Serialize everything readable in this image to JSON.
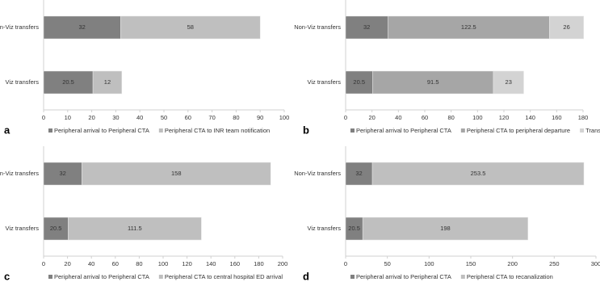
{
  "chart_data": [
    {
      "type": "stacked-bar",
      "panel_label": "a",
      "categories": [
        "Non-Viz transfers",
        "Viz transfers"
      ],
      "series": [
        {
          "name": "Peripheral arrival to Peripheral CTA",
          "color": "#808080",
          "values": [
            32,
            20.5
          ]
        },
        {
          "name": "Peripheral CTA to INR team notification",
          "color": "#bfbfbf",
          "values": [
            58,
            12
          ]
        }
      ],
      "xlim": [
        0,
        100
      ],
      "xticks": [
        0,
        10,
        20,
        30,
        40,
        50,
        60,
        70,
        80,
        90,
        100
      ]
    },
    {
      "type": "stacked-bar",
      "panel_label": "b",
      "categories": [
        "Non-Viz transfers",
        "Viz transfers"
      ],
      "series": [
        {
          "name": "Peripheral arrival to Peripheral CTA",
          "color": "#808080",
          "values": [
            32,
            20.5
          ]
        },
        {
          "name": "Peripheral CTA to peripheral departure",
          "color": "#a6a6a6",
          "values": [
            122.5,
            91.5
          ]
        },
        {
          "name": "Transfer time",
          "color": "#d3d3d3",
          "values": [
            26,
            23
          ]
        }
      ],
      "xlim": [
        0,
        180
      ],
      "xticks": [
        0,
        20,
        40,
        60,
        80,
        100,
        120,
        140,
        160,
        180
      ]
    },
    {
      "type": "stacked-bar",
      "panel_label": "c",
      "categories": [
        "Non-Viz transfers",
        "Viz transfers"
      ],
      "series": [
        {
          "name": "Peripheral arrival to Peripheral CTA",
          "color": "#808080",
          "values": [
            32,
            20.5
          ]
        },
        {
          "name": "Peripheral CTA to central hospital ED arrival",
          "color": "#bfbfbf",
          "values": [
            158,
            111.5
          ]
        }
      ],
      "xlim": [
        0,
        200
      ],
      "xticks": [
        0,
        20,
        40,
        60,
        80,
        100,
        120,
        140,
        160,
        180,
        200
      ]
    },
    {
      "type": "stacked-bar",
      "panel_label": "d",
      "categories": [
        "Non-Viz transfers",
        "Viz transfers"
      ],
      "series": [
        {
          "name": "Peripheral arrival to Peripheral CTA",
          "color": "#808080",
          "values": [
            32,
            20.5
          ]
        },
        {
          "name": "Peripheral CTA to recanalization",
          "color": "#bfbfbf",
          "values": [
            253.5,
            198
          ]
        }
      ],
      "xlim": [
        0,
        300
      ],
      "xticks": [
        0,
        50,
        100,
        150,
        200,
        250,
        300
      ]
    }
  ]
}
